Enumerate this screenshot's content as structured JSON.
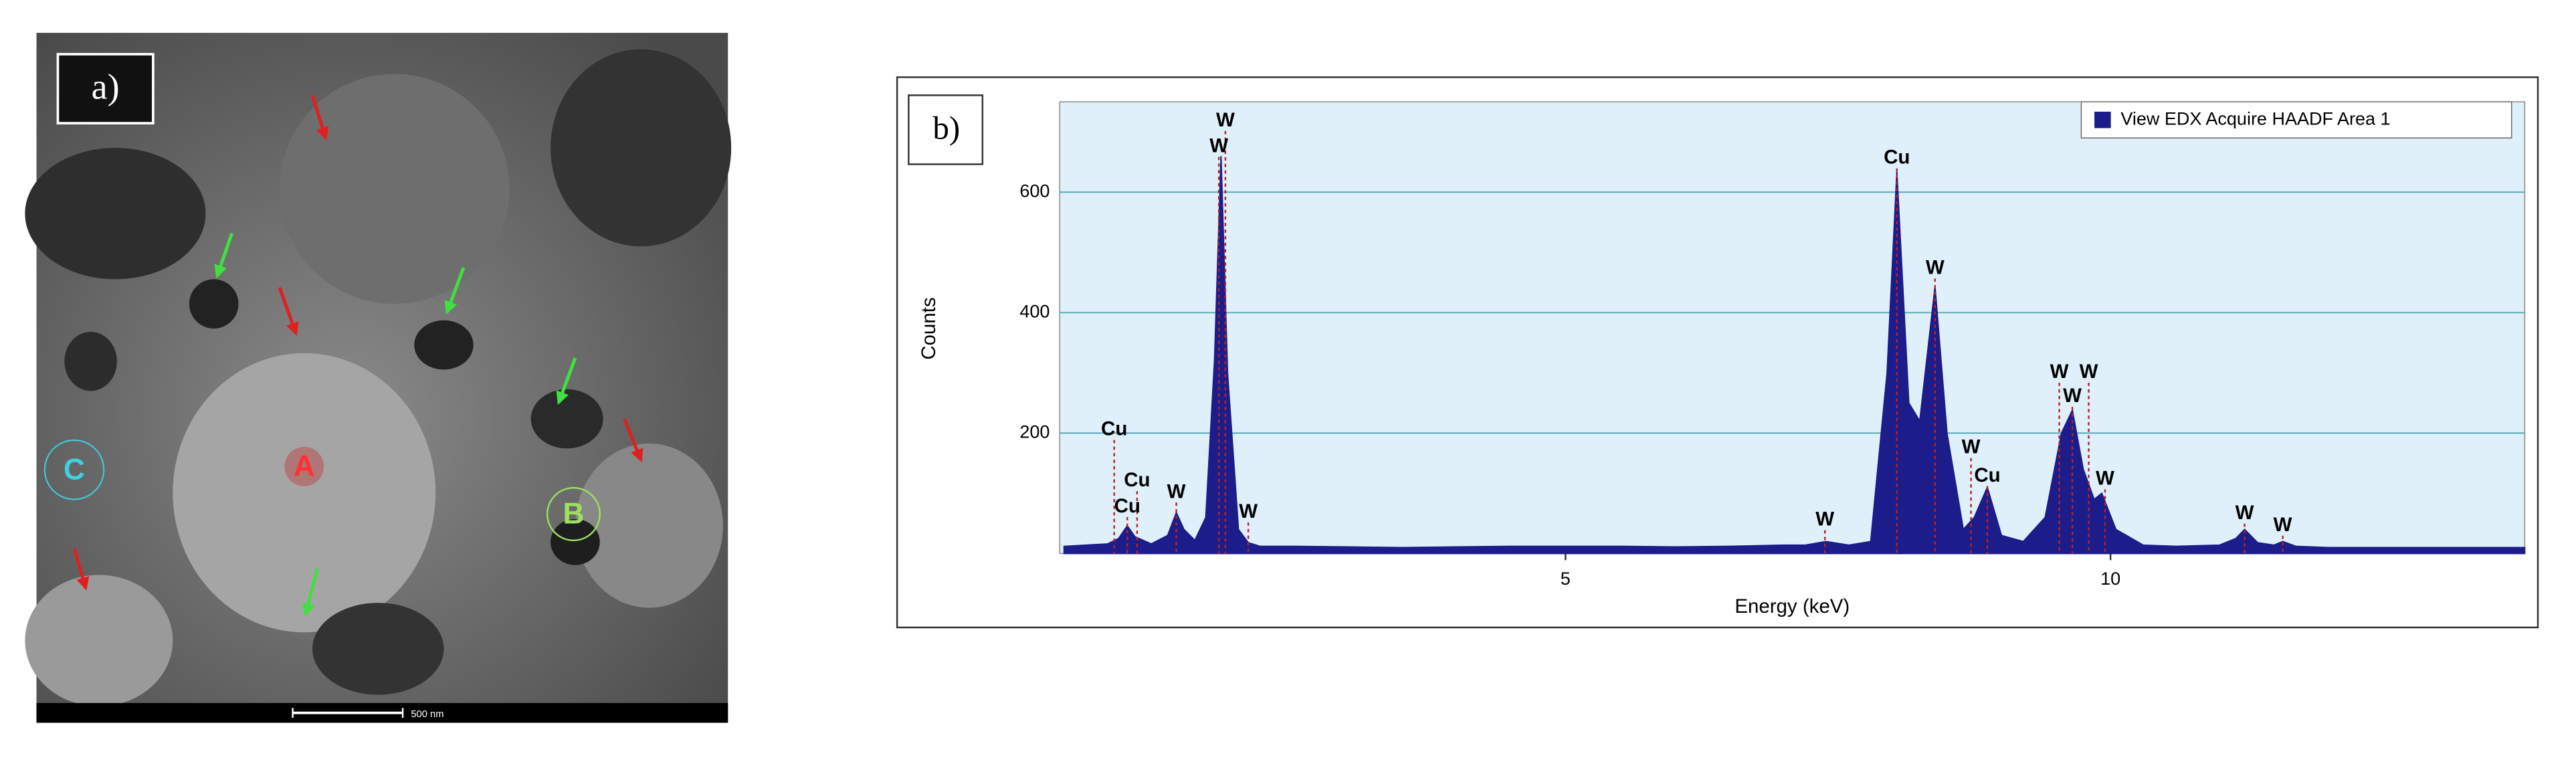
{
  "image_panel": {
    "label": "a)",
    "regions": [
      "A",
      "B",
      "C"
    ],
    "scale_bar": "500 nm"
  },
  "chart_data": {
    "type": "area",
    "panel_label": "b)",
    "xlabel": "Energy (keV)",
    "ylabel": "Counts",
    "xlim": [
      0.36,
      13.8
    ],
    "ylim": [
      0,
      750
    ],
    "xticks": [
      5,
      10
    ],
    "yticks": [
      200,
      400,
      600
    ],
    "grid": true,
    "legend": "top-right",
    "plot_background": "#dff0fa",
    "x": [
      0.4,
      0.6,
      0.8,
      0.9,
      0.98,
      1.05,
      1.2,
      1.35,
      1.43,
      1.5,
      1.6,
      1.7,
      1.78,
      1.84,
      1.9,
      2.0,
      2.09,
      2.2,
      2.5,
      3,
      3.5,
      4,
      4.5,
      5,
      5.5,
      6,
      6.5,
      7,
      7.2,
      7.39,
      7.6,
      7.8,
      7.95,
      8.04,
      8.15,
      8.25,
      8.39,
      8.5,
      8.65,
      8.75,
      8.87,
      9.0,
      9.2,
      9.4,
      9.55,
      9.65,
      9.75,
      9.85,
      9.92,
      10.05,
      10.3,
      10.6,
      11.0,
      11.15,
      11.23,
      11.35,
      11.5,
      11.58,
      11.7,
      12,
      12.5,
      13,
      13.5,
      13.8
    ],
    "series": [
      {
        "name": "View EDX Acquire HAADF Area 1",
        "color": "#1c1c8a",
        "values": [
          12,
          14,
          16,
          25,
          46,
          28,
          16,
          30,
          68,
          40,
          22,
          60,
          320,
          660,
          300,
          40,
          18,
          12,
          12,
          11,
          10,
          11,
          12,
          12,
          12,
          11,
          12,
          14,
          14,
          20,
          14,
          20,
          300,
          634,
          250,
          220,
          443,
          200,
          40,
          60,
          110,
          30,
          20,
          60,
          200,
          238,
          140,
          90,
          100,
          40,
          14,
          12,
          14,
          25,
          40,
          18,
          14,
          20,
          12,
          10,
          10,
          10,
          10,
          10
        ]
      }
    ],
    "peak_labels": [
      {
        "label": "Cu",
        "energy": 0.86,
        "counts": 205
      },
      {
        "label": "Cu",
        "energy": 1.07,
        "counts": 120
      },
      {
        "label": "Cu",
        "energy": 0.98,
        "counts": 77
      },
      {
        "label": "W",
        "energy": 1.43,
        "counts": 101
      },
      {
        "label": "W",
        "energy": 1.88,
        "counts": 718
      },
      {
        "label": "W",
        "energy": 1.82,
        "counts": 675
      },
      {
        "label": "W",
        "energy": 2.09,
        "counts": 68
      },
      {
        "label": "W",
        "energy": 7.38,
        "counts": 55
      },
      {
        "label": "Cu",
        "energy": 8.04,
        "counts": 656
      },
      {
        "label": "W",
        "energy": 8.39,
        "counts": 473
      },
      {
        "label": "W",
        "energy": 8.72,
        "counts": 175
      },
      {
        "label": "Cu",
        "energy": 8.87,
        "counts": 128
      },
      {
        "label": "W",
        "energy": 9.53,
        "counts": 300
      },
      {
        "label": "W",
        "energy": 9.8,
        "counts": 300
      },
      {
        "label": "W",
        "energy": 9.65,
        "counts": 260
      },
      {
        "label": "W",
        "energy": 9.95,
        "counts": 123
      },
      {
        "label": "W",
        "energy": 11.23,
        "counts": 66
      },
      {
        "label": "W",
        "energy": 11.58,
        "counts": 46
      }
    ]
  }
}
